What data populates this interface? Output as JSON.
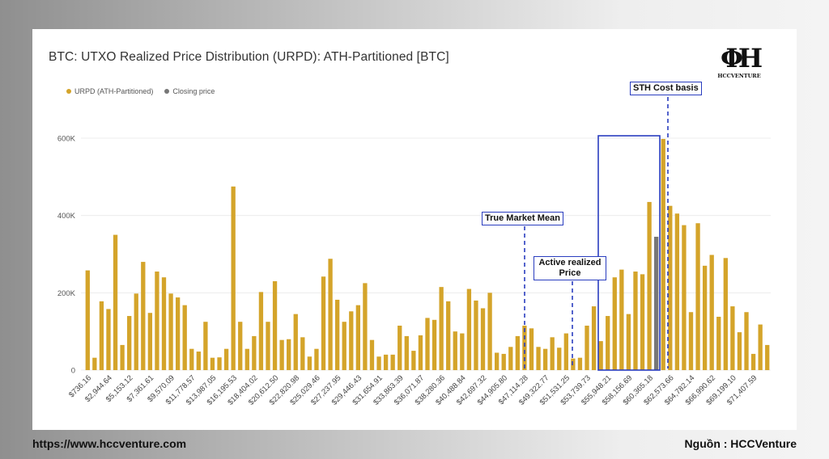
{
  "title": "BTC: UTXO Realized Price Distribution (URPD): ATH-Partitioned [BTC]",
  "logo": {
    "text": "HCCVENTURE"
  },
  "footer": {
    "url": "https://www.hccventure.com",
    "source": "Nguồn : HCCVenture"
  },
  "legend": [
    {
      "label": "URPD (ATH-Partitioned)",
      "color": "#d4a42a"
    },
    {
      "label": "Closing price",
      "color": "#777777"
    }
  ],
  "annotations": {
    "sth": "STH Cost basis",
    "tmm": "True Market Mean",
    "arp_line1": "Active realized",
    "arp_line2": "Price"
  },
  "colors": {
    "bar": "#d4a42a",
    "closing": "#777777",
    "annotation": "#2a3dbf",
    "grid": "#ececec"
  },
  "chart_data": {
    "type": "bar",
    "title": "BTC: UTXO Realized Price Distribution (URPD): ATH-Partitioned [BTC]",
    "ylim": [
      0,
      600000
    ],
    "yticks": [
      0,
      200000,
      400000,
      600000
    ],
    "ytick_labels": [
      "0",
      "200K",
      "400K",
      "600K"
    ],
    "grid": true,
    "legend_placement": "top-left",
    "tick_labels": [
      "$736.16",
      "$2,944.64",
      "$5,153.12",
      "$7,361.61",
      "$9,570.09",
      "$11,778.57",
      "$13,987.05",
      "$16,195.53",
      "$18,404.02",
      "$20,612.50",
      "$22,820.98",
      "$25,029.46",
      "$27,237.95",
      "$29,446.43",
      "$31,654.91",
      "$33,863.39",
      "$36,071.87",
      "$38,280.36",
      "$40,488.84",
      "$42,697.32",
      "$44,905.80",
      "$47,114.28",
      "$49,322.77",
      "$51,531.25",
      "$53,739.73",
      "$55,948.21",
      "$58,156.69",
      "$60,365.18",
      "$62,573.66",
      "$64,782.14",
      "$66,990.62",
      "$69,199.10",
      "$71,407.59"
    ],
    "series": [
      {
        "name": "URPD (ATH-Partitioned)",
        "values": [
          258000,
          32000,
          178000,
          158000,
          350000,
          65000,
          140000,
          198000,
          280000,
          148000,
          255000,
          240000,
          198000,
          188000,
          168000,
          55000,
          48000,
          125000,
          32000,
          33000,
          55000,
          475000,
          125000,
          55000,
          88000,
          202000,
          125000,
          230000,
          78000,
          80000,
          145000,
          85000,
          35000,
          55000,
          242000,
          288000,
          182000,
          125000,
          152000,
          168000,
          225000,
          78000,
          35000,
          40000,
          40000,
          115000,
          88000,
          50000,
          90000,
          135000,
          130000,
          215000,
          178000,
          100000,
          95000,
          210000,
          180000,
          160000,
          200000,
          45000,
          42000,
          60000,
          88000,
          115000,
          108000,
          60000,
          55000,
          85000,
          58000,
          95000,
          30000,
          32000,
          115000,
          165000,
          75000,
          140000,
          240000,
          260000,
          145000,
          255000,
          248000,
          435000,
          345000,
          598000,
          425000,
          405000,
          375000,
          150000,
          380000,
          270000,
          298000,
          138000,
          290000,
          165000,
          98000,
          150000,
          42000,
          118000,
          65000
        ]
      },
      {
        "name": "Closing price",
        "values": [
          0,
          0,
          0,
          0,
          0,
          0,
          0,
          0,
          0,
          0,
          0,
          0,
          0,
          0,
          0,
          0,
          0,
          0,
          0,
          0,
          0,
          0,
          0,
          0,
          0,
          0,
          0,
          0,
          0,
          0,
          0,
          0,
          0,
          0,
          0,
          0,
          0,
          0,
          0,
          0,
          0,
          0,
          0,
          0,
          0,
          0,
          0,
          0,
          0,
          0,
          0,
          0,
          0,
          0,
          0,
          0,
          0,
          0,
          0,
          0,
          0,
          0,
          0,
          0,
          0,
          0,
          0,
          0,
          0,
          0,
          0,
          0,
          0,
          0,
          0,
          0,
          0,
          0,
          0,
          0,
          0,
          0,
          345000,
          0,
          0,
          0,
          0,
          0,
          0,
          0,
          0,
          0,
          0,
          0,
          0,
          0,
          0,
          0,
          0
        ]
      }
    ]
  }
}
